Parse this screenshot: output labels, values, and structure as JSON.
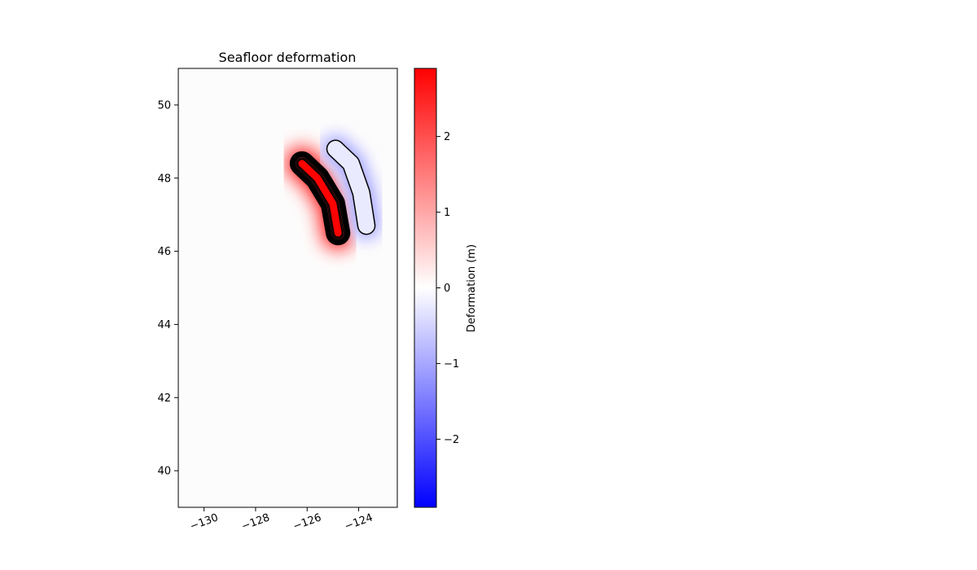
{
  "chart_data": {
    "type": "heatmap",
    "title": "Seafloor deformation",
    "xlabel": "",
    "ylabel": "",
    "xlim": [
      -131,
      -122.5
    ],
    "ylim": [
      39,
      51
    ],
    "xticks": [
      -130,
      -128,
      -126,
      -124
    ],
    "xtick_labels": [
      "−130",
      "−128",
      "−126",
      "−124"
    ],
    "yticks": [
      40,
      42,
      44,
      46,
      48,
      50
    ],
    "ytick_labels": [
      "40",
      "42",
      "44",
      "46",
      "48",
      "50"
    ],
    "colorbar": {
      "label": "Deformation (m)",
      "colormap": "bwr",
      "range": [
        -2.9,
        2.9
      ],
      "ticks": [
        -2,
        -1,
        0,
        1,
        2
      ],
      "tick_labels": [
        "−2",
        "−1",
        "0",
        "1",
        "2"
      ],
      "color_min": "#0000ff",
      "color_mid": "#ffffff",
      "color_max": "#ff0000"
    },
    "deformation_lobes": [
      {
        "name": "uplift",
        "sign": 1,
        "peak_m": 2.8,
        "path_lon": [
          -126.2,
          -125.6,
          -125.0,
          -124.8
        ],
        "path_lat": [
          48.4,
          48.0,
          47.3,
          46.5
        ],
        "width_deg": 0.7
      },
      {
        "name": "subsidence",
        "sign": -1,
        "peak_m": -1.2,
        "path_lon": [
          -124.9,
          -124.3,
          -123.9,
          -123.7
        ],
        "path_lat": [
          48.8,
          48.4,
          47.6,
          46.7
        ],
        "width_deg": 0.55
      }
    ],
    "contour_levels_m": [
      -1.0,
      -0.8,
      -0.6,
      -0.4,
      -0.2,
      0.2,
      0.4,
      0.6,
      0.8,
      1.0,
      1.3,
      1.6,
      2.0,
      2.4
    ],
    "grid": false
  }
}
